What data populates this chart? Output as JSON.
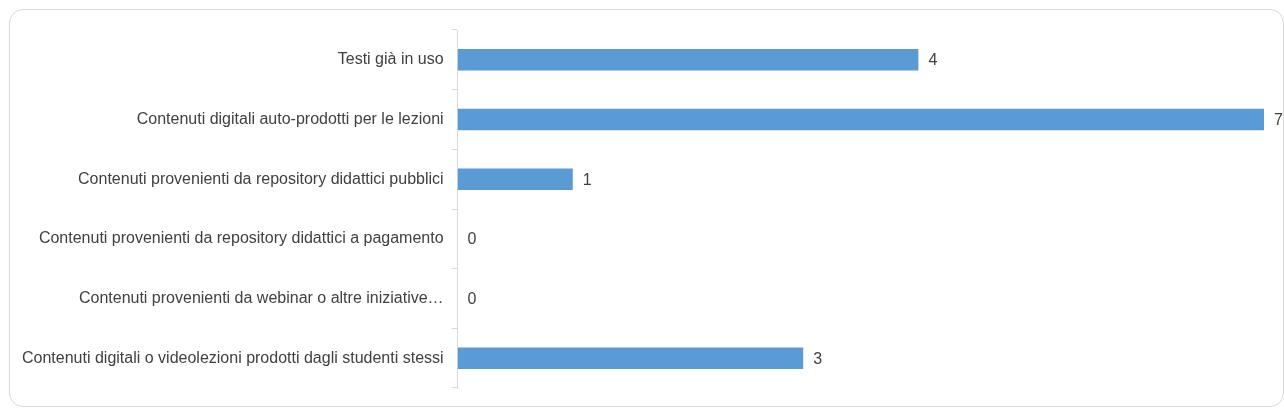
{
  "chart_data": {
    "type": "bar",
    "orientation": "horizontal",
    "categories": [
      "Testi già in uso",
      "Contenuti digitali auto-prodotti per le lezioni",
      "Contenuti provenienti da repository didattici pubblici",
      "Contenuti provenienti da repository didattici a pagamento",
      "Contenuti provenienti da webinar o altre iniziative…",
      "Contenuti digitali o videolezioni prodotti dagli studenti stessi"
    ],
    "values": [
      4,
      7,
      1,
      0,
      0,
      3
    ],
    "color": "#5b9bd5",
    "data_labels": true,
    "tick_labels": "y"
  }
}
